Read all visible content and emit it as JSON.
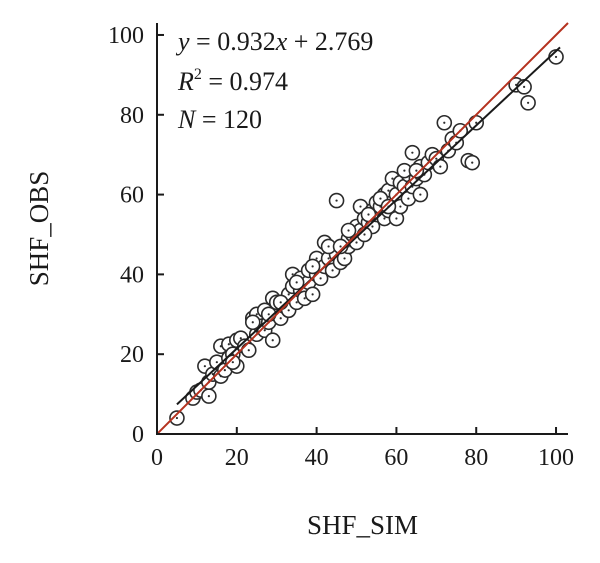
{
  "chart_data": {
    "type": "scatter",
    "title": "",
    "xlabel": "SHF_SIM",
    "ylabel": "SHF_OBS",
    "xlim": [
      0,
      103
    ],
    "ylim": [
      0,
      103
    ],
    "xticks": [
      0,
      20,
      40,
      60,
      80,
      100
    ],
    "yticks": [
      0,
      20,
      40,
      60,
      80,
      100
    ],
    "x_tick_labels": [
      "0",
      "20",
      "40",
      "60",
      "80",
      "100"
    ],
    "y_tick_labels": [
      "0",
      "20",
      "40",
      "60",
      "80",
      "100"
    ],
    "grid": false,
    "annotations": {
      "equation": {
        "y": "y",
        "eq": " = 0.932",
        "x": "x",
        "rest": " + 2.769"
      },
      "r2": {
        "R": "R",
        "sup": "2",
        "rest": " = 0.974"
      },
      "n": {
        "N": "N",
        "rest": " = 120"
      }
    },
    "colors": {
      "points": "#2b2b2b",
      "fit_line": "#1a1a1a",
      "identity_line": "#b5321f",
      "axes": "#1a1a1a"
    },
    "fit_line": {
      "slope": 0.932,
      "intercept": 2.769,
      "x_range": [
        5,
        101
      ]
    },
    "identity_line": {
      "x_range": [
        0,
        103
      ]
    },
    "points": [
      {
        "x": 5,
        "y": 4
      },
      {
        "x": 9,
        "y": 9
      },
      {
        "x": 10,
        "y": 10.5
      },
      {
        "x": 11,
        "y": 11
      },
      {
        "x": 12,
        "y": 17
      },
      {
        "x": 13,
        "y": 9.5
      },
      {
        "x": 13,
        "y": 13
      },
      {
        "x": 14,
        "y": 15
      },
      {
        "x": 15,
        "y": 18
      },
      {
        "x": 16,
        "y": 22
      },
      {
        "x": 16,
        "y": 14.5
      },
      {
        "x": 17,
        "y": 16
      },
      {
        "x": 18,
        "y": 19
      },
      {
        "x": 18,
        "y": 22.5
      },
      {
        "x": 19,
        "y": 20
      },
      {
        "x": 20,
        "y": 17
      },
      {
        "x": 20,
        "y": 23.5
      },
      {
        "x": 21,
        "y": 24
      },
      {
        "x": 22,
        "y": 22
      },
      {
        "x": 23,
        "y": 21
      },
      {
        "x": 24,
        "y": 29
      },
      {
        "x": 25,
        "y": 30
      },
      {
        "x": 25,
        "y": 25
      },
      {
        "x": 26,
        "y": 27
      },
      {
        "x": 27,
        "y": 26
      },
      {
        "x": 27,
        "y": 31
      },
      {
        "x": 28,
        "y": 28
      },
      {
        "x": 29,
        "y": 23.5
      },
      {
        "x": 29,
        "y": 34
      },
      {
        "x": 30,
        "y": 30
      },
      {
        "x": 30,
        "y": 33
      },
      {
        "x": 31,
        "y": 29
      },
      {
        "x": 32,
        "y": 32
      },
      {
        "x": 33,
        "y": 35
      },
      {
        "x": 33,
        "y": 31
      },
      {
        "x": 34,
        "y": 37
      },
      {
        "x": 34,
        "y": 40
      },
      {
        "x": 35,
        "y": 33
      },
      {
        "x": 36,
        "y": 36
      },
      {
        "x": 36,
        "y": 39
      },
      {
        "x": 37,
        "y": 34
      },
      {
        "x": 38,
        "y": 38
      },
      {
        "x": 38,
        "y": 41
      },
      {
        "x": 39,
        "y": 35
      },
      {
        "x": 40,
        "y": 40
      },
      {
        "x": 40,
        "y": 44
      },
      {
        "x": 41,
        "y": 39
      },
      {
        "x": 42,
        "y": 42
      },
      {
        "x": 42,
        "y": 48
      },
      {
        "x": 43,
        "y": 44
      },
      {
        "x": 44,
        "y": 41
      },
      {
        "x": 45,
        "y": 45
      },
      {
        "x": 45,
        "y": 58.5
      },
      {
        "x": 46,
        "y": 43
      },
      {
        "x": 47,
        "y": 46
      },
      {
        "x": 47,
        "y": 44
      },
      {
        "x": 48,
        "y": 47
      },
      {
        "x": 48,
        "y": 49
      },
      {
        "x": 49,
        "y": 50
      },
      {
        "x": 50,
        "y": 48
      },
      {
        "x": 50,
        "y": 52
      },
      {
        "x": 51,
        "y": 51
      },
      {
        "x": 51,
        "y": 57
      },
      {
        "x": 52,
        "y": 54
      },
      {
        "x": 53,
        "y": 53
      },
      {
        "x": 54,
        "y": 56
      },
      {
        "x": 54,
        "y": 52
      },
      {
        "x": 55,
        "y": 55
      },
      {
        "x": 55,
        "y": 58
      },
      {
        "x": 56,
        "y": 57
      },
      {
        "x": 57,
        "y": 54
      },
      {
        "x": 57,
        "y": 60
      },
      {
        "x": 58,
        "y": 56
      },
      {
        "x": 58,
        "y": 61
      },
      {
        "x": 59,
        "y": 58
      },
      {
        "x": 59,
        "y": 64
      },
      {
        "x": 60,
        "y": 60
      },
      {
        "x": 60,
        "y": 54
      },
      {
        "x": 61,
        "y": 63
      },
      {
        "x": 61,
        "y": 57
      },
      {
        "x": 62,
        "y": 62
      },
      {
        "x": 63,
        "y": 59
      },
      {
        "x": 63,
        "y": 65
      },
      {
        "x": 64,
        "y": 70.5
      },
      {
        "x": 64,
        "y": 62
      },
      {
        "x": 65,
        "y": 64
      },
      {
        "x": 66,
        "y": 60
      },
      {
        "x": 66,
        "y": 67
      },
      {
        "x": 67,
        "y": 65
      },
      {
        "x": 68,
        "y": 68
      },
      {
        "x": 69,
        "y": 70
      },
      {
        "x": 70,
        "y": 69
      },
      {
        "x": 71,
        "y": 67
      },
      {
        "x": 72,
        "y": 78
      },
      {
        "x": 73,
        "y": 71
      },
      {
        "x": 74,
        "y": 74
      },
      {
        "x": 75,
        "y": 73
      },
      {
        "x": 76,
        "y": 76
      },
      {
        "x": 78,
        "y": 68.5
      },
      {
        "x": 79,
        "y": 68
      },
      {
        "x": 80,
        "y": 78
      },
      {
        "x": 90,
        "y": 87.5
      },
      {
        "x": 92,
        "y": 87
      },
      {
        "x": 93,
        "y": 83
      },
      {
        "x": 100,
        "y": 94.5
      },
      {
        "x": 35,
        "y": 38
      },
      {
        "x": 43,
        "y": 47
      },
      {
        "x": 52,
        "y": 50
      },
      {
        "x": 56,
        "y": 59
      },
      {
        "x": 62,
        "y": 66
      },
      {
        "x": 46,
        "y": 47
      },
      {
        "x": 31,
        "y": 33
      },
      {
        "x": 24,
        "y": 28
      },
      {
        "x": 39,
        "y": 42
      },
      {
        "x": 53,
        "y": 55
      },
      {
        "x": 65,
        "y": 66
      },
      {
        "x": 19,
        "y": 18
      },
      {
        "x": 28,
        "y": 30
      },
      {
        "x": 48,
        "y": 51
      },
      {
        "x": 58,
        "y": 57
      }
    ]
  }
}
